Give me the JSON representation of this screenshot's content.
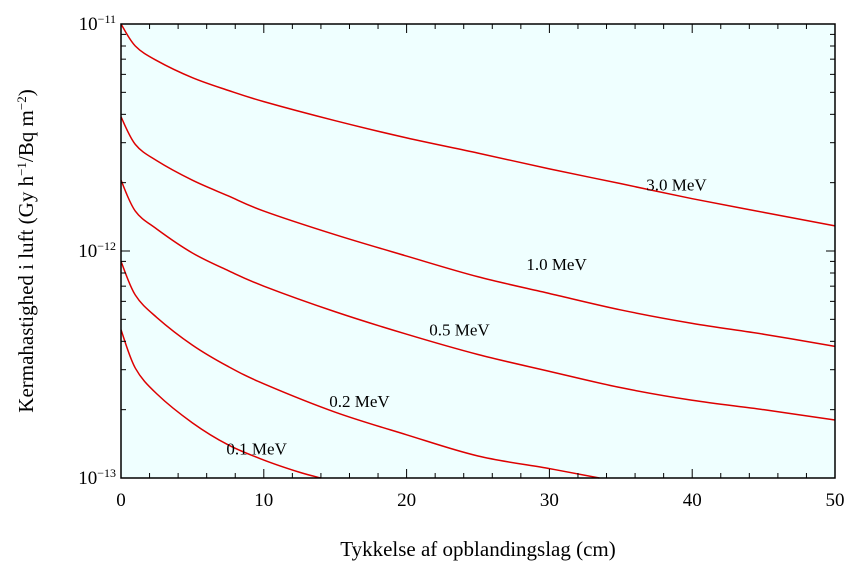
{
  "chart_data": {
    "type": "line",
    "title": "",
    "xlabel": "Tykkelse af opblandingslag (cm)",
    "ylabel": {
      "text": "Kermahastighed i luft (Gy h",
      "sup1": "−1",
      "mid": "/Bq m",
      "sup2": "−2",
      "end": ")"
    },
    "x_scale": "linear",
    "y_scale": "log",
    "xlim": [
      0,
      50
    ],
    "ylim": [
      1e-13,
      1e-11
    ],
    "x_ticks": [
      0,
      10,
      20,
      30,
      40,
      50
    ],
    "y_ticks": [
      {
        "value": 1e-13,
        "base": "10",
        "exp": "−13"
      },
      {
        "value": 1e-12,
        "base": "10",
        "exp": "−12"
      },
      {
        "value": 1e-11,
        "base": "10",
        "exp": "−11"
      }
    ],
    "plot_background": "#efffff",
    "line_color": "#dd0000",
    "grid": false,
    "series": [
      {
        "name": "3.0 MeV",
        "x": [
          0,
          1,
          2.5,
          5,
          7.5,
          10,
          15,
          20,
          25,
          30,
          35,
          40,
          45,
          50
        ],
        "y": [
          1e-11,
          8e-12,
          6.9e-12,
          5.8e-12,
          5.1e-12,
          4.55e-12,
          3.75e-12,
          3.15e-12,
          2.7e-12,
          2.3e-12,
          1.98e-12,
          1.7e-12,
          1.48e-12,
          1.29e-12
        ]
      },
      {
        "name": "1.0 MeV",
        "x": [
          0,
          1,
          2.5,
          5,
          7.5,
          10,
          15,
          20,
          25,
          30,
          35,
          40,
          45,
          50
        ],
        "y": [
          3.9e-12,
          2.95e-12,
          2.5e-12,
          2.05e-12,
          1.75e-12,
          1.5e-12,
          1.18e-12,
          9.5e-13,
          7.7e-13,
          6.5e-13,
          5.5e-13,
          4.8e-13,
          4.3e-13,
          3.8e-13
        ]
      },
      {
        "name": "0.5 MeV",
        "x": [
          0,
          1,
          2.5,
          5,
          7.5,
          10,
          15,
          20,
          25,
          30,
          35,
          40,
          45,
          50
        ],
        "y": [
          2.05e-12,
          1.5e-12,
          1.25e-12,
          9.8e-13,
          8.2e-13,
          7e-13,
          5.4e-13,
          4.3e-13,
          3.5e-13,
          2.95e-13,
          2.5e-13,
          2.2e-13,
          2e-13,
          1.8e-13
        ]
      },
      {
        "name": "0.2 MeV",
        "x": [
          0,
          1,
          2.5,
          5,
          7.5,
          10,
          15,
          20,
          25,
          30,
          33.5
        ],
        "y": [
          9e-13,
          6.4e-13,
          5.1e-13,
          3.85e-13,
          3.1e-13,
          2.6e-13,
          1.95e-13,
          1.55e-13,
          1.25e-13,
          1.1e-13,
          1e-13
        ]
      },
      {
        "name": "0.1 MeV",
        "x": [
          0,
          1,
          2.5,
          5,
          7.5,
          10,
          12.5,
          14
        ],
        "y": [
          4.5e-13,
          3.05e-13,
          2.35e-13,
          1.75e-13,
          1.4e-13,
          1.2e-13,
          1.06e-13,
          1e-13
        ]
      }
    ],
    "annotations": [
      {
        "text": "3.0 MeV",
        "x": 38.9,
        "y": 1.96e-12
      },
      {
        "text": "1.0 MeV",
        "x": 30.5,
        "y": 8.75e-13
      },
      {
        "text": "0.5 MeV",
        "x": 23.7,
        "y": 4.5e-13
      },
      {
        "text": "0.2 MeV",
        "x": 16.7,
        "y": 2.18e-13
      },
      {
        "text": "0.1 MeV",
        "x": 9.5,
        "y": 1.35e-13
      }
    ]
  }
}
